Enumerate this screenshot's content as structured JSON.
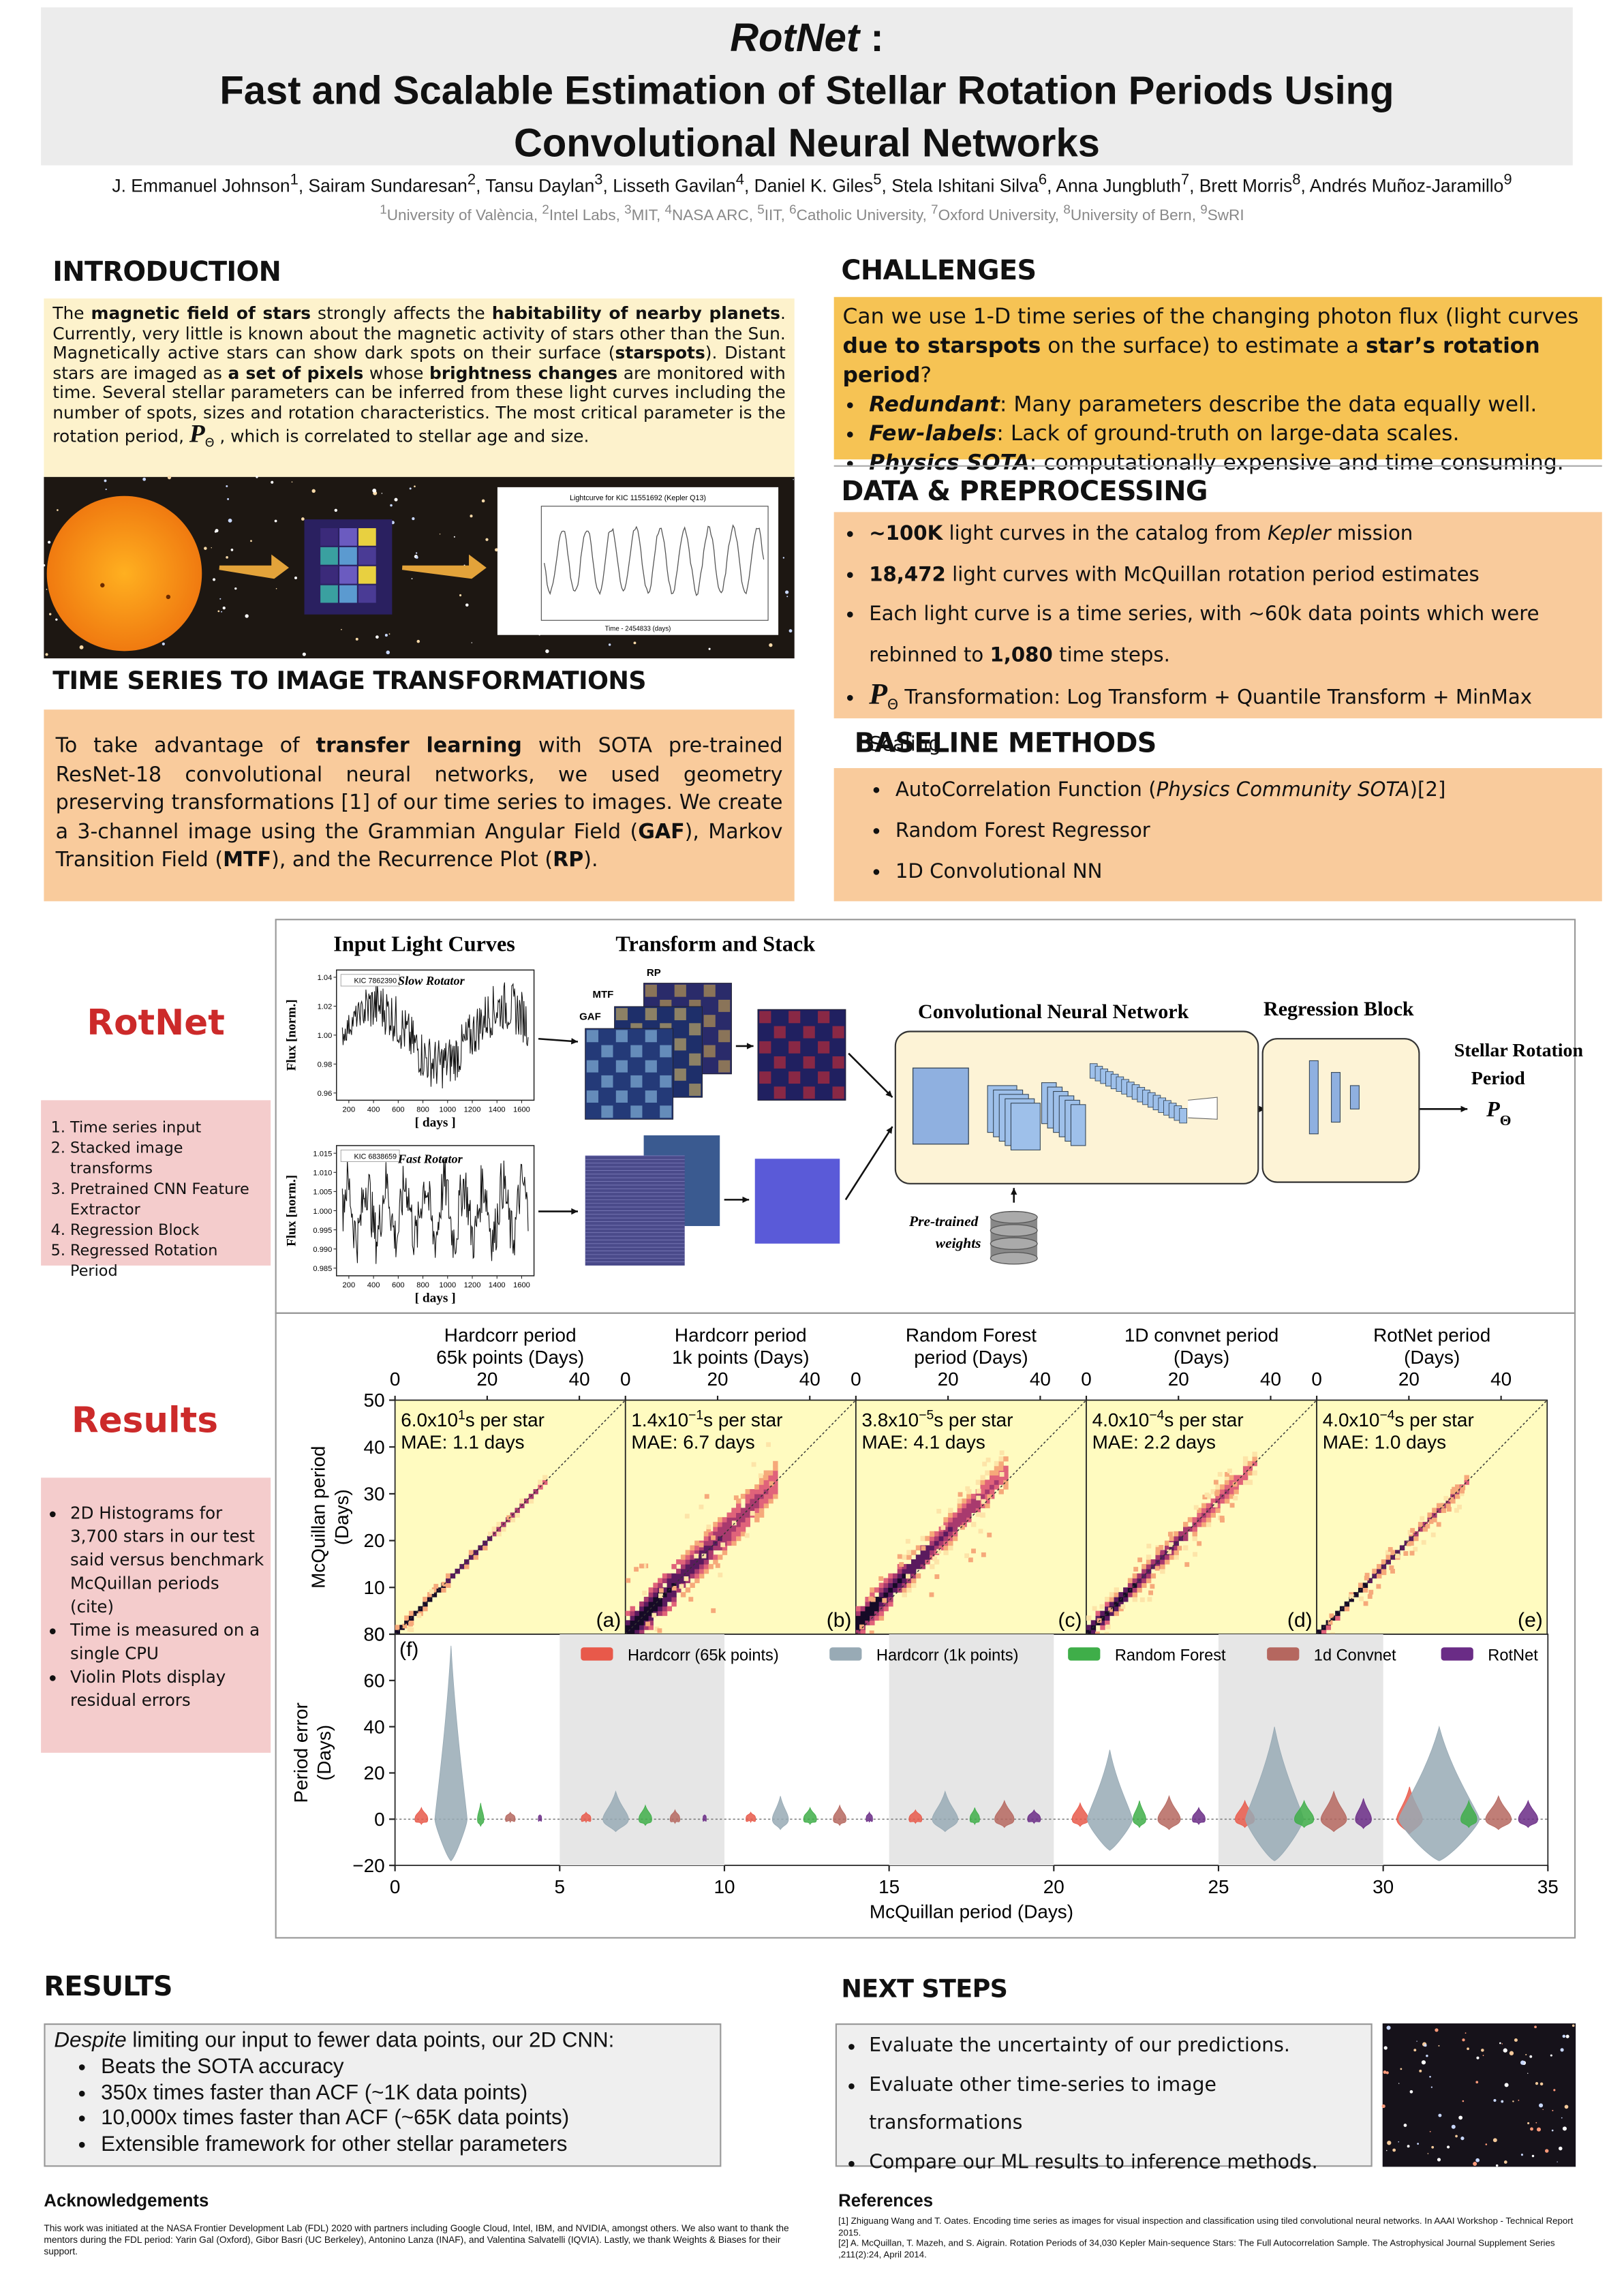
{
  "header": {
    "title_name": "RotNet",
    "title_suffix": " :",
    "title_lines": [
      "Fast and Scalable Estimation of Stellar Rotation Periods Using",
      "Convolutional Neural Networks"
    ],
    "separator": ", ",
    "authors": [
      {
        "name": "J. Emmanuel Johnson",
        "sup": "1"
      },
      {
        "name": "Sairam Sundaresan",
        "sup": "2"
      },
      {
        "name": "Tansu Daylan",
        "sup": "3"
      },
      {
        "name": "Lisseth Gavilan",
        "sup": "4"
      },
      {
        "name": "Daniel K. Giles",
        "sup": "5"
      },
      {
        "name": "Stela Ishitani Silva",
        "sup": "6"
      },
      {
        "name": "Anna Jungbluth",
        "sup": "7"
      },
      {
        "name": "Brett Morris",
        "sup": "8"
      },
      {
        "name": "Andrés Muñoz-Jaramillo",
        "sup": "9"
      }
    ],
    "affiliations": [
      {
        "sup": "1",
        "name": "University of València"
      },
      {
        "sup": "2",
        "name": "Intel Labs"
      },
      {
        "sup": "3",
        "name": "MIT"
      },
      {
        "sup": "4",
        "name": "NASA ARC"
      },
      {
        "sup": "5",
        "name": "IIT"
      },
      {
        "sup": "6",
        "name": "Catholic University"
      },
      {
        "sup": "7",
        "name": "Oxford University"
      },
      {
        "sup": "8",
        "name": "University of Bern"
      },
      {
        "sup": "9",
        "name": "SwRI"
      }
    ]
  },
  "introduction": {
    "heading": "INTRODUCTION",
    "text": [
      {
        "text": "The "
      },
      {
        "text": "magnetic field of stars",
        "b": true
      },
      {
        "text": " strongly affects the "
      },
      {
        "text": "habitability of nearby planets",
        "b": true
      },
      {
        "text": ". Currently, very little is known about the magnetic activity of stars other than the Sun. Magnetically active stars can show dark spots on their surface ("
      },
      {
        "text": "starspots",
        "b": true
      },
      {
        "text": "). Distant stars are imaged as "
      },
      {
        "text": "a set of pixels",
        "b": true
      },
      {
        "text": " whose "
      },
      {
        "text": "brightness changes",
        "b": true
      },
      {
        "text": " are monitored with time. Several stellar parameters can be inferred from these light curves including the number of spots, sizes and rotation characteristics. The most critical parameter is the rotation period, "
      },
      {
        "text": "P",
        "sym": true
      },
      {
        "text": "Θ",
        "sub": true
      },
      {
        "text": " , which is correlated to stellar age and size."
      }
    ],
    "image": {
      "lightcurve_title": "Lightcurve for KIC 11551692 (Kepler Q13)",
      "lightcurve_xlabel": "Time - 2454833 (days)"
    }
  },
  "time_series": {
    "heading": "TIME SERIES TO IMAGE TRANSFORMATIONS",
    "text": [
      {
        "text": "To take advantage of "
      },
      {
        "text": "transfer learning",
        "b": true
      },
      {
        "text": " with SOTA pre-trained ResNet-18 convolutional neural networks, we used geometry preserving transformations [1] of our time series to images. We create a 3-channel image using the Grammian Angular Field ("
      },
      {
        "text": "GAF",
        "b": true
      },
      {
        "text": "), Markov Transition Field ("
      },
      {
        "text": "MTF",
        "b": true
      },
      {
        "text": "), and the Recurrence Plot ("
      },
      {
        "text": "RP",
        "b": true
      },
      {
        "text": ")."
      }
    ]
  },
  "challenges": {
    "heading": "CHALLENGES",
    "text": [
      {
        "text": "Can we use 1-D time series of the changing photon flux (light curves "
      },
      {
        "text": "due to starspots",
        "b": true
      },
      {
        "text": " on the surface) to estimate a "
      },
      {
        "text": "star’s rotation period",
        "b": true
      },
      {
        "text": "?"
      }
    ],
    "bullets": [
      [
        {
          "text": "Redundant",
          "b": true,
          "i": true
        },
        {
          "text": ": Many parameters describe the data equally well."
        }
      ],
      [
        {
          "text": "Few-labels",
          "b": true,
          "i": true
        },
        {
          "text": ": Lack of ground-truth on large-data scales."
        }
      ],
      [
        {
          "text": "Physics SOTA",
          "b": true,
          "i": true
        },
        {
          "text": ": computationally expensive and time consuming."
        }
      ]
    ]
  },
  "data_preprocessing": {
    "heading": "DATA & PREPROCESSING",
    "bullets": [
      [
        {
          "text": "~100K",
          "b": true
        },
        {
          "text": " light curves in the catalog from "
        },
        {
          "text": "Kepler",
          "i": true
        },
        {
          "text": " mission"
        }
      ],
      [
        {
          "text": "18,472",
          "b": true
        },
        {
          "text": " light curves with McQuillan rotation period estimates"
        }
      ],
      [
        {
          "text": "Each light curve is a time series, with ~60k data points which were rebinned to "
        },
        {
          "text": "1,080",
          "b": true
        },
        {
          "text": " time steps."
        }
      ],
      [
        {
          "text": "P",
          "sym": true
        },
        {
          "text": "Θ",
          "sub": true
        },
        {
          "text": " Transformation: Log Transform + Quantile Transform + MinMax Scaling"
        }
      ]
    ]
  },
  "baseline_methods": {
    "heading": "BASELINE METHODS",
    "bullets": [
      [
        {
          "text": "AutoCorrelation Function ("
        },
        {
          "text": "Physics Community SOTA",
          "i": true
        },
        {
          "text": ")[2]"
        }
      ],
      [
        {
          "text": "Random Forest Regressor"
        }
      ],
      [
        {
          "text": "1D Convolutional NN"
        }
      ]
    ]
  },
  "sidebar": {
    "rotnet_label": "RotNet",
    "rotnet_steps": [
      "Time series input",
      "Stacked image transforms",
      "Pretrained CNN Feature Extractor",
      "Regression Block",
      "Regressed Rotation Period"
    ],
    "results_label": "Results",
    "results_bullets": [
      "2D Histograms for 3,700 stars in our test said versus benchmark McQuillan periods (cite)",
      "Time is measured on a single CPU",
      "Violin Plots display residual errors"
    ]
  },
  "figures": {
    "pipeline": {
      "input_title": "Input Light Curves",
      "transform_title": "Transform and Stack",
      "channels": [
        "RP",
        "MTF",
        "GAF"
      ],
      "cnn_title": "Convolutional Neural Network",
      "regression_title": "Regression Block",
      "output_title": [
        "Stellar Rotation",
        "Period"
      ],
      "output_symbol": "P",
      "output_sub": "Θ",
      "weights_label": [
        "Pre-trained",
        "weights"
      ],
      "plots": [
        {
          "legend": "KIC 7862390",
          "label": "Slow Rotator",
          "ylabel": "Flux [norm.]",
          "xlabel": "[ days ]",
          "xlim": [
            100,
            1700
          ],
          "xticks": [
            200,
            400,
            600,
            800,
            1000,
            1200,
            1400,
            1600
          ],
          "ylim": [
            0.955,
            1.045
          ],
          "yticks": [
            1.04,
            1.02,
            {
              "value": 1,
              "label": "1.00"
            },
            0.98,
            0.96
          ]
        },
        {
          "legend": "KIC 6838659",
          "label": "Fast Rotator",
          "ylabel": "Flux [norm.]",
          "xlabel": "[ days ]",
          "xlim": [
            100,
            1700
          ],
          "xticks": [
            200,
            400,
            600,
            800,
            1000,
            1200,
            1400,
            1600
          ],
          "ylim": [
            0.983,
            1.017
          ],
          "yticks": [
            1.015,
            {
              "value": 1.01,
              "label": "1.010"
            },
            1.005,
            {
              "value": 1,
              "label": "1.000"
            },
            0.995,
            {
              "value": 0.99,
              "label": "0.990"
            },
            0.985
          ]
        }
      ]
    },
    "results": {
      "xlim": [
        0,
        50
      ],
      "xticks": [
        0,
        20,
        40
      ],
      "ylim": [
        0,
        50
      ],
      "yticks": [
        0,
        10,
        20,
        30,
        40,
        50
      ],
      "ylabel": [
        "McQuillan period",
        "(Days)"
      ],
      "panels": [
        {
          "title": [
            "Hardcorr period",
            "65k points (Days)"
          ],
          "time_mantissa": "6.0x10",
          "time_exp": "1",
          "time_unit": "s per star",
          "mae": "MAE: 1.1 days",
          "tag": "(a)"
        },
        {
          "title": [
            "Hardcorr period",
            "1k points (Days)"
          ],
          "time_mantissa": "1.4x10",
          "time_exp": "−1",
          "time_unit": "s per star",
          "mae": "MAE: 6.7 days",
          "tag": "(b)"
        },
        {
          "title": [
            "Random Forest",
            "period (Days)"
          ],
          "time_mantissa": "3.8x10",
          "time_exp": "−5",
          "time_unit": "s per star",
          "mae": "MAE: 4.1 days",
          "tag": "(c)"
        },
        {
          "title": [
            "1D convnet period",
            "(Days)"
          ],
          "time_mantissa": "4.0x10",
          "time_exp": "−4",
          "time_unit": "s per star",
          "mae": "MAE: 2.2 days",
          "tag": "(d)"
        },
        {
          "title": [
            "RotNet period",
            "(Days)"
          ],
          "time_mantissa": "4.0x10",
          "time_exp": "−4",
          "time_unit": "s per star",
          "mae": "MAE: 1.0 days",
          "tag": "(e)"
        }
      ],
      "violin": {
        "tag": "(f)",
        "xlim": [
          0,
          35
        ],
        "xticks": [
          0,
          5,
          10,
          15,
          20,
          25,
          30,
          35
        ],
        "ylim": [
          -20,
          80
        ],
        "yticks": [
          {
            "value": -20,
            "label": "−20"
          },
          0,
          20,
          40,
          60,
          80
        ],
        "ylabel": [
          "Period error",
          "(Days)"
        ],
        "xlabel": "McQuillan period (Days)",
        "legend": [
          {
            "name": "Hardcorr (65k points)",
            "color": "#e8594a"
          },
          {
            "name": "Hardcorr (1k points)",
            "color": "#98aab5"
          },
          {
            "name": "Random Forest",
            "color": "#3fae49"
          },
          {
            "name": "1d Convnet",
            "color": "#b5675f"
          },
          {
            "name": "RotNet",
            "color": "#6a2c86"
          }
        ]
      }
    }
  },
  "results_section": {
    "heading": "RESULTS",
    "intro": [
      {
        "text": "Despite",
        "i": true
      },
      {
        "text": " limiting our input to fewer data points, our 2D CNN:"
      }
    ],
    "bullets": [
      "Beats the SOTA accuracy",
      "350x times faster than ACF (~1K data points)",
      "10,000x  times faster than ACF (~65K data points)",
      "Extensible framework for other stellar parameters"
    ]
  },
  "next_steps": {
    "heading": "NEXT STEPS",
    "bullets": [
      "Evaluate the uncertainty of our predictions.",
      "Evaluate other time-series to image transformations",
      "Compare our ML results to inference methods."
    ]
  },
  "acknowledgements": {
    "heading": "Acknowledgements",
    "text": "This work was initiated at the NASA Frontier Development Lab (FDL) 2020 with partners including Google Cloud, Intel, IBM, and NVIDIA, amongst others. We also want to thank the mentors during the FDL period: Yarin Gal (Oxford), Gibor Basri (UC Berkeley), Antonino Lanza (INAF), and Valentina Salvatelli (IQVIA). Lastly, we thank Weights & Biases for their support."
  },
  "references": {
    "heading": "References",
    "items": [
      "[1] Zhiguang Wang and T. Oates.  Encoding time series as images for visual inspection and classification using tiled convolutional neural networks. In AAAI Workshop - Technical Report 2015.",
      "[2] A. McQuillan, T. Mazeh, and S. Aigrain. Rotation Periods of 34,030 Kepler Main-sequence Stars:  The Full Autocorrelation Sample. The Astrophysical Journal Supplement  Series ,211(2):24, April 2014."
    ]
  }
}
